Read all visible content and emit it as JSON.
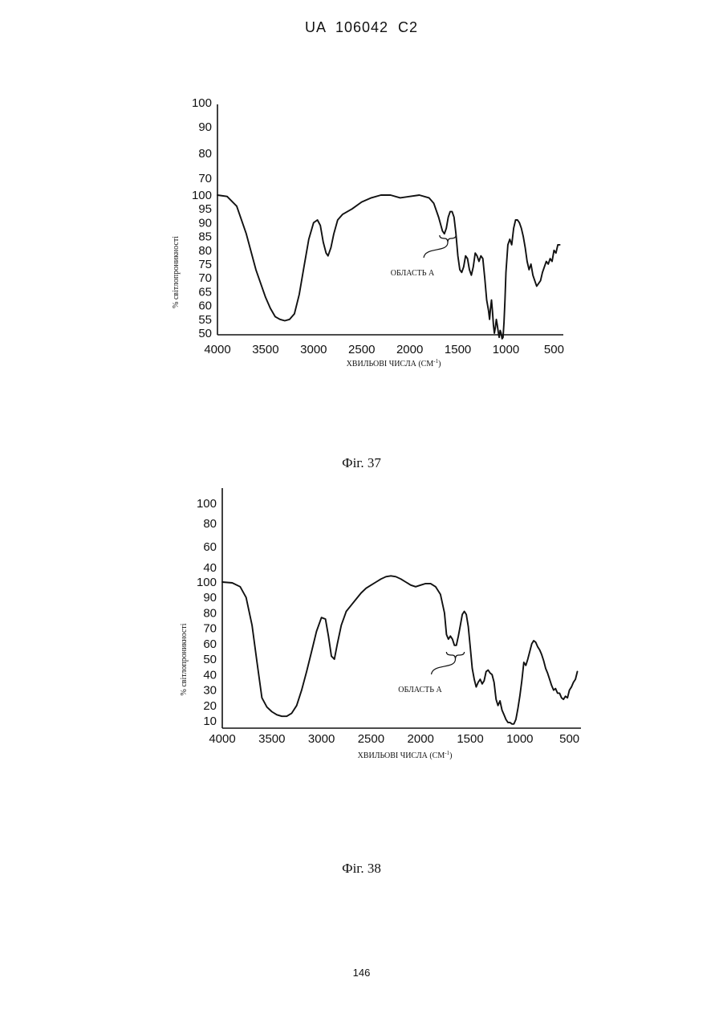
{
  "header": {
    "text": "UA   106042   C2"
  },
  "page_number": "146",
  "chart_data": [
    {
      "type": "line",
      "caption": "Фіг. 37",
      "xlabel": "ХВИЛЬОВІ ЧИСЛА (СМ",
      "xlabel_sup": "-1",
      "xlabel_close": ")",
      "ylabel": "% світлопроникності",
      "xlim": [
        4000,
        420
      ],
      "ylim": [
        50,
        100
      ],
      "x_ticks": [
        "4000",
        "3500",
        "3000",
        "2500",
        "2000",
        "1500",
        "1000",
        "500"
      ],
      "y_ticks_upper": [
        "100",
        "90",
        "80",
        "70"
      ],
      "y_ticks_lower": [
        "100",
        "95",
        "90",
        "85",
        "80",
        "75",
        "70",
        "65",
        "60",
        "55",
        "50"
      ],
      "annotation": {
        "text": "ОБЛАСТЬ А",
        "x_range": [
          1690,
          1520
        ]
      },
      "series": [
        {
          "x": [
            4000,
            3900,
            3800,
            3700,
            3600,
            3500,
            3450,
            3400,
            3350,
            3300,
            3250,
            3200,
            3150,
            3100,
            3050,
            3000,
            2960,
            2930,
            2900,
            2870,
            2850,
            2820,
            2790,
            2750,
            2700,
            2600,
            2500,
            2400,
            2300,
            2200,
            2100,
            2000,
            1900,
            1800,
            1750,
            1700,
            1660,
            1640,
            1620,
            1600,
            1580,
            1560,
            1540,
            1520,
            1500,
            1480,
            1460,
            1440,
            1420,
            1400,
            1380,
            1360,
            1340,
            1320,
            1300,
            1280,
            1260,
            1240,
            1220,
            1200,
            1180,
            1170,
            1160,
            1150,
            1140,
            1130,
            1120,
            1110,
            1100,
            1090,
            1080,
            1070,
            1060,
            1050,
            1040,
            1030,
            1020,
            1010,
            1000,
            980,
            960,
            940,
            920,
            900,
            880,
            860,
            840,
            820,
            800,
            780,
            760,
            740,
            720,
            700,
            680,
            660,
            640,
            620,
            600,
            580,
            560,
            540,
            520,
            500,
            480,
            460,
            440
          ],
          "y": [
            100,
            99.5,
            96,
            86,
            73,
            63,
            59,
            56,
            55,
            54.5,
            55,
            57,
            64,
            74,
            84,
            90,
            91,
            89,
            83,
            79,
            78,
            81,
            86,
            91,
            93,
            95,
            97.5,
            99,
            100,
            100,
            99,
            99.5,
            100,
            99,
            97,
            92,
            87,
            86,
            88,
            92,
            94,
            94,
            92,
            86,
            78,
            73,
            72,
            74,
            78,
            77,
            73,
            71,
            74,
            79,
            78,
            76,
            78,
            77,
            70,
            62,
            58,
            55,
            59,
            62,
            58,
            53,
            50,
            52,
            55,
            53,
            50.5,
            48.5,
            51,
            50,
            48,
            48.5,
            54,
            62,
            72,
            82,
            84,
            82,
            88,
            91,
            91,
            90,
            88,
            85,
            81,
            76,
            73,
            75,
            71,
            69,
            67,
            68,
            69,
            72,
            74,
            76,
            75,
            77,
            76,
            80,
            79,
            82,
            82
          ]
        }
      ]
    },
    {
      "type": "line",
      "caption": "Фіг. 38",
      "xlabel": "ХВИЛЬОВІ ЧИСЛА (СМ",
      "xlabel_sup": "-1",
      "xlabel_close": ")",
      "ylabel": "% світлопроникності",
      "xlim": [
        4000,
        400
      ],
      "ylim": [
        10,
        100
      ],
      "x_ticks": [
        "4000",
        "3500",
        "3000",
        "2500",
        "2000",
        "1500",
        "1000",
        "500"
      ],
      "y_ticks_upper": [
        "100",
        "80",
        "60",
        "40"
      ],
      "y_ticks_lower": [
        "100",
        "90",
        "80",
        "70",
        "60",
        "50",
        "40",
        "30",
        "20",
        "10"
      ],
      "annotation": {
        "text": "ОБЛАСТЬ А",
        "x_range": [
          1740,
          1560
        ]
      },
      "series": [
        {
          "x": [
            4000,
            3900,
            3820,
            3760,
            3700,
            3650,
            3600,
            3550,
            3500,
            3450,
            3400,
            3350,
            3300,
            3250,
            3200,
            3150,
            3100,
            3050,
            3000,
            2960,
            2930,
            2900,
            2870,
            2840,
            2800,
            2750,
            2700,
            2650,
            2600,
            2550,
            2500,
            2450,
            2400,
            2350,
            2300,
            2250,
            2200,
            2150,
            2100,
            2050,
            2000,
            1950,
            1900,
            1850,
            1800,
            1760,
            1740,
            1720,
            1700,
            1680,
            1660,
            1640,
            1620,
            1600,
            1580,
            1560,
            1540,
            1520,
            1500,
            1480,
            1460,
            1440,
            1420,
            1400,
            1380,
            1360,
            1340,
            1320,
            1300,
            1280,
            1260,
            1240,
            1220,
            1200,
            1180,
            1160,
            1140,
            1120,
            1100,
            1080,
            1060,
            1040,
            1020,
            1000,
            980,
            960,
            940,
            920,
            900,
            880,
            860,
            840,
            820,
            800,
            780,
            760,
            740,
            720,
            700,
            680,
            660,
            640,
            620,
            600,
            580,
            560,
            540,
            520,
            500,
            480,
            460,
            440,
            420
          ],
          "y": [
            100,
            99.5,
            97,
            90,
            72,
            48,
            25,
            19,
            16,
            14,
            13,
            13,
            15,
            20,
            30,
            42,
            55,
            68,
            77,
            76,
            65,
            52,
            50,
            60,
            72,
            81,
            85,
            89,
            93,
            96,
            98,
            100,
            102,
            103.5,
            104,
            103.5,
            102,
            100,
            98,
            97,
            98,
            99,
            99,
            97,
            92,
            80,
            66,
            63,
            65,
            63,
            59,
            59,
            65,
            72,
            79,
            81,
            79,
            71,
            58,
            44,
            37,
            32,
            35,
            37,
            34,
            36,
            42,
            43,
            41,
            40,
            35,
            24,
            20,
            23,
            17,
            14,
            11,
            9,
            9,
            8,
            8,
            11,
            18,
            26,
            36,
            48,
            46,
            50,
            55,
            60,
            62,
            61,
            58,
            56,
            53,
            49,
            44,
            41,
            37,
            33,
            30,
            31,
            28,
            28,
            25,
            24,
            26,
            25,
            30,
            32,
            35,
            37,
            42
          ]
        }
      ]
    }
  ]
}
